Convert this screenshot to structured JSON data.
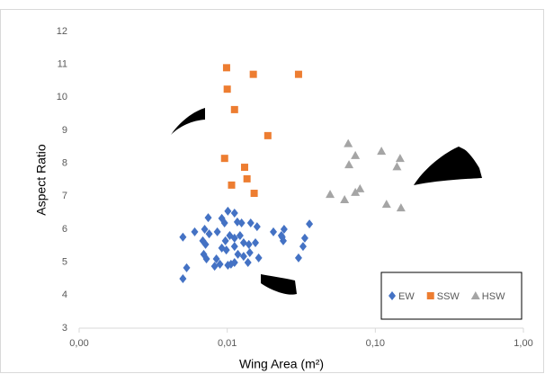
{
  "chart_data": {
    "type": "scatter",
    "x_label": "Wing Area (m²)",
    "y_label": "Aspect Ratio",
    "xlim": [
      0.001,
      1
    ],
    "xscale": "log",
    "xticks": [
      {
        "value": 0.001,
        "label": "0,00"
      },
      {
        "value": 0.01,
        "label": "0,01"
      },
      {
        "value": 0.1,
        "label": "0,10"
      },
      {
        "value": 1,
        "label": "1,00"
      }
    ],
    "ylim": [
      3,
      12
    ],
    "yticks": [
      3,
      4,
      5,
      6,
      7,
      8,
      9,
      10,
      11,
      12
    ],
    "grid": false,
    "legend": "lower right",
    "series": [
      {
        "name": "EW",
        "color": "#4472c4",
        "marker": "diamond",
        "x": [
          0.00502,
          0.00532,
          0.00502,
          0.00603,
          0.00704,
          0.00744,
          0.00684,
          0.00714,
          0.00755,
          0.00857,
          0.00919,
          0.00959,
          0.0101,
          0.0112,
          0.0117,
          0.0125,
          0.0144,
          0.0159,
          0.00972,
          0.0104,
          0.0112,
          0.0122,
          0.0129,
          0.014,
          0.0155,
          0.00919,
          0.00986,
          0.0112,
          0.0118,
          0.0129,
          0.0142,
          0.0163,
          0.00694,
          0.00724,
          0.00845,
          0.00893,
          0.00822,
          0.0101,
          0.0106,
          0.0112,
          0.0138,
          0.0205,
          0.0232,
          0.0242,
          0.0239,
          0.0334,
          0.0325,
          0.0303,
          0.0359,
          0.0235
        ],
        "values": [
          4.5,
          4.83,
          5.76,
          5.92,
          6.0,
          6.35,
          5.65,
          5.54,
          5.86,
          5.92,
          6.33,
          6.19,
          6.55,
          6.49,
          6.22,
          6.19,
          6.19,
          6.08,
          5.65,
          5.81,
          5.73,
          5.81,
          5.59,
          5.54,
          5.59,
          5.43,
          5.37,
          5.48,
          5.24,
          5.18,
          5.29,
          5.13,
          5.24,
          5.1,
          5.1,
          4.94,
          4.88,
          4.91,
          4.94,
          4.99,
          4.99,
          5.92,
          5.81,
          6.0,
          5.65,
          5.73,
          5.48,
          5.13,
          6.16,
          5.76
        ]
      },
      {
        "name": "SSW",
        "color": "#ed7d31",
        "marker": "square",
        "x": [
          0.0099,
          0.015,
          0.0303,
          0.01,
          0.0112,
          0.0188,
          0.0096,
          0.0131,
          0.0136,
          0.0107,
          0.0152
        ],
        "values": [
          10.9,
          10.7,
          10.7,
          10.25,
          9.63,
          8.84,
          8.15,
          7.88,
          7.53,
          7.34,
          7.09
        ]
      },
      {
        "name": "HSW",
        "color": "#a5a5a5",
        "marker": "triangle",
        "x": [
          0.0656,
          0.11,
          0.0733,
          0.0664,
          0.14,
          0.147,
          0.0788,
          0.0733,
          0.0495,
          0.062,
          0.119,
          0.149
        ],
        "values": [
          8.6,
          8.37,
          8.24,
          7.96,
          7.9,
          8.15,
          7.23,
          7.12,
          7.06,
          6.9,
          6.76,
          6.65
        ]
      }
    ]
  }
}
